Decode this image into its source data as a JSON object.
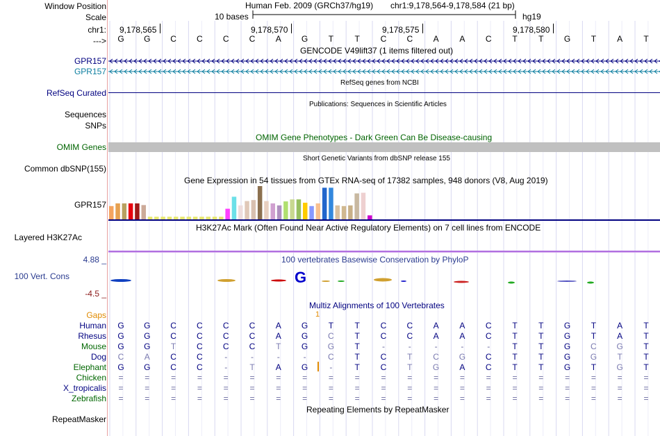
{
  "header": {
    "window_position_label": "Window Position",
    "scale_label": "Scale",
    "chrom_label": "chr1:",
    "strand_label": "--->",
    "assembly_title": "Human Feb. 2009 (GRCh37/hg19)",
    "position_text": "chr1:9,178,564-9,178,584 (21 bp)",
    "scale_text": "10 bases",
    "db_label": "hg19",
    "ticks": [
      "9,178,565",
      "9,178,570",
      "9,178,575",
      "9,178,580"
    ]
  },
  "reference_bases": [
    "G",
    "G",
    "C",
    "C",
    "C",
    "C",
    "A",
    "G",
    "T",
    "T",
    "C",
    "C",
    "A",
    "A",
    "C",
    "T",
    "T",
    "G",
    "T",
    "A",
    "T"
  ],
  "tracks": {
    "gencode_title": "GENCODE V49lift37 (1 items filtered out)",
    "gencode_items": [
      "GPR157",
      "GPR157"
    ],
    "refseq_label": "RefSeq Curated",
    "refseq_title": "RefSeq genes from NCBI",
    "pubs_title": "Publications: Sequences in Scientific Articles",
    "sequences_label": "Sequences",
    "snps_label": "SNPs",
    "omim_title": "OMIM Gene Phenotypes - Dark Green Can Be Disease-causing",
    "omim_label": "OMIM Genes",
    "dbsnp_title": "Short Genetic Variants from dbSNP release 155",
    "dbsnp_label": "Common dbSNP(155)",
    "gtex_title": "Gene Expression in 54 tissues from GTEx RNA-seq of 17382 samples, 948 donors (V8, Aug 2019)",
    "gtex_label": "GPR157",
    "h3k27_title": "H3K27Ac Mark (Often Found Near Active Regulatory Elements) on 7 cell lines from ENCODE",
    "h3k27_label": "Layered H3K27Ac",
    "cons_title": "100 vertebrates Basewise Conservation by PhyloP",
    "cons_label": "100 Vert. Cons",
    "cons_max": "4.88 _",
    "cons_min": "-4.5 _",
    "multiz_title": "Multiz Alignments of 100 Vertebrates",
    "gaps_label": "Gaps",
    "gap_marker": "1",
    "repeat_title": "Repeating Elements by RepeatMasker",
    "repeat_label": "RepeatMasker"
  },
  "gtex_values": [
    {
      "color": "#f4a460",
      "v": 0.4
    },
    {
      "color": "#e6a050",
      "v": 0.48
    },
    {
      "color": "#b8a060",
      "v": 0.48
    },
    {
      "color": "#e8000f",
      "v": 0.48
    },
    {
      "color": "#a01818",
      "v": 0.48
    },
    {
      "color": "#ccaa99",
      "v": 0.43
    },
    {
      "color": "#e8e870",
      "v": 0.08
    },
    {
      "color": "#e8e870",
      "v": 0.08
    },
    {
      "color": "#e8e870",
      "v": 0.08
    },
    {
      "color": "#e8e870",
      "v": 0.08
    },
    {
      "color": "#e8e870",
      "v": 0.08
    },
    {
      "color": "#e8e870",
      "v": 0.08
    },
    {
      "color": "#e8e870",
      "v": 0.08
    },
    {
      "color": "#e8e870",
      "v": 0.08
    },
    {
      "color": "#e8e870",
      "v": 0.08
    },
    {
      "color": "#e8e870",
      "v": 0.08
    },
    {
      "color": "#e8e870",
      "v": 0.08
    },
    {
      "color": "#e8e870",
      "v": 0.08
    },
    {
      "color": "#ff40ff",
      "v": 0.32
    },
    {
      "color": "#6ce0e8",
      "v": 0.68
    },
    {
      "color": "#eedddd",
      "v": 0.42
    },
    {
      "color": "#e0c8b8",
      "v": 0.55
    },
    {
      "color": "#d8c0b0",
      "v": 0.58
    },
    {
      "color": "#8b7050",
      "v": 1.0
    },
    {
      "color": "#e8d0c0",
      "v": 0.55
    },
    {
      "color": "#d0a0d0",
      "v": 0.48
    },
    {
      "color": "#b090c0",
      "v": 0.42
    },
    {
      "color": "#b0e070",
      "v": 0.54
    },
    {
      "color": "#c8d890",
      "v": 0.6
    },
    {
      "color": "#98c060",
      "v": 0.6
    },
    {
      "color": "#ffcc00",
      "v": 0.5
    },
    {
      "color": "#8899ff",
      "v": 0.4
    },
    {
      "color": "#f8c090",
      "v": 0.48
    },
    {
      "color": "#2266cc",
      "v": 0.95
    },
    {
      "color": "#3388dd",
      "v": 0.95
    },
    {
      "color": "#d8c0a0",
      "v": 0.42
    },
    {
      "color": "#d0b890",
      "v": 0.4
    },
    {
      "color": "#c8b088",
      "v": 0.42
    },
    {
      "color": "#c8b8a0",
      "v": 0.78
    },
    {
      "color": "#eed0d0",
      "v": 0.8
    },
    {
      "color": "#cc00cc",
      "v": 0.12
    }
  ],
  "alignments": [
    {
      "name": "Human",
      "color": "#000080",
      "bases": [
        "G",
        "G",
        "C",
        "C",
        "C",
        "C",
        "A",
        "G",
        "T",
        "T",
        "C",
        "C",
        "A",
        "A",
        "C",
        "T",
        "T",
        "G",
        "T",
        "A",
        "T"
      ]
    },
    {
      "name": "Rhesus",
      "color": "#000080",
      "bases": [
        "G",
        "G",
        "C",
        "C",
        "C",
        "C",
        "A",
        "G",
        "C",
        "T",
        "C",
        "C",
        "A",
        "A",
        "C",
        "T",
        "T",
        "G",
        "T",
        "A",
        "T"
      ]
    },
    {
      "name": "Mouse",
      "color": "#006600",
      "bases": [
        "G",
        "G",
        "T",
        "C",
        "C",
        "C",
        "T",
        "G",
        "G",
        "T",
        "-",
        "-",
        "-",
        "-",
        "-",
        "T",
        "T",
        "G",
        "C",
        "G",
        "T"
      ]
    },
    {
      "name": "Dog",
      "color": "#000080",
      "bases": [
        "C",
        "A",
        "C",
        "C",
        "-",
        "-",
        "-",
        "-",
        "C",
        "T",
        "C",
        "T",
        "C",
        "G",
        "C",
        "T",
        "T",
        "G",
        "G",
        "T",
        "T"
      ]
    },
    {
      "name": "Elephant",
      "color": "#006600",
      "bases": [
        "G",
        "G",
        "C",
        "C",
        "-",
        "T",
        "A",
        "G",
        "-",
        "T",
        "C",
        "T",
        "G",
        "A",
        "C",
        "T",
        "T",
        "G",
        "T",
        "G",
        "T"
      ]
    },
    {
      "name": "Chicken",
      "color": "#006600",
      "bases": [
        "=",
        "=",
        "=",
        "=",
        "=",
        "=",
        "=",
        "=",
        "=",
        "=",
        "=",
        "=",
        "=",
        "=",
        "=",
        "=",
        "=",
        "=",
        "=",
        "=",
        "="
      ]
    },
    {
      "name": "X_tropicalis",
      "color": "#000080",
      "bases": [
        "=",
        "=",
        "=",
        "=",
        "=",
        "=",
        "=",
        "=",
        "=",
        "=",
        "=",
        "=",
        "=",
        "=",
        "=",
        "=",
        "=",
        "=",
        "=",
        "=",
        "="
      ]
    },
    {
      "name": "Zebrafish",
      "color": "#006600",
      "bases": [
        "=",
        "=",
        "=",
        "=",
        "=",
        "=",
        "=",
        "=",
        "=",
        "=",
        "=",
        "=",
        "=",
        "=",
        "=",
        "=",
        "=",
        "=",
        "=",
        "=",
        "="
      ]
    }
  ],
  "colors": {
    "gene_blue": "#000080",
    "gene_teal": "#0e7fa0",
    "omim_green": "#006400",
    "cons_blue": "#2a3b8f",
    "gaps_orange": "#e08a00",
    "omim_gray": "#c0c0c0"
  }
}
